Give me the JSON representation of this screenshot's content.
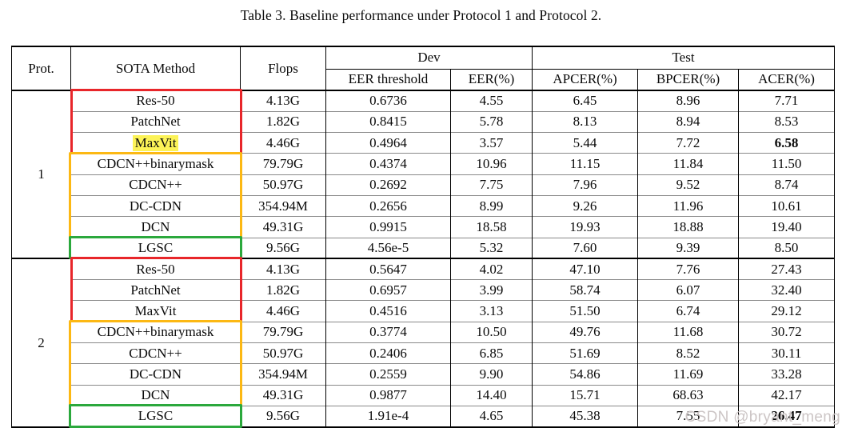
{
  "title": "Table 3. Baseline performance under Protocol 1 and Protocol 2.",
  "watermark": "CSDN @bryant_meng",
  "colors": {
    "red_box": "#e8262a",
    "orange_box": "#fcb813",
    "green_box": "#2ba83c",
    "highlight": "#fcf357",
    "row_line": "#8a8a8a"
  },
  "table": {
    "headers": {
      "prot": "Prot.",
      "method": "SOTA Method",
      "flops": "Flops",
      "dev": "Dev",
      "test": "Test",
      "sub": [
        "EER threshold",
        "EER(%)",
        "APCER(%)",
        "BPCER(%)",
        "ACER(%)"
      ]
    },
    "protocols": [
      {
        "label": "1",
        "rows": [
          {
            "method": "Res-50",
            "flops": "4.13G",
            "eer_threshold": "0.6736",
            "eer": "4.55",
            "apcer": "6.45",
            "bpcer": "8.96",
            "acer": "7.71",
            "group": "red",
            "highlight": false,
            "acer_bold": false
          },
          {
            "method": "PatchNet",
            "flops": "1.82G",
            "eer_threshold": "0.8415",
            "eer": "5.78",
            "apcer": "8.13",
            "bpcer": "8.94",
            "acer": "8.53",
            "group": "red",
            "highlight": false,
            "acer_bold": false
          },
          {
            "method": "MaxVit",
            "flops": "4.46G",
            "eer_threshold": "0.4964",
            "eer": "3.57",
            "apcer": "5.44",
            "bpcer": "7.72",
            "acer": "6.58",
            "group": "red",
            "highlight": true,
            "acer_bold": true
          },
          {
            "method": "CDCN++binarymask",
            "flops": "79.79G",
            "eer_threshold": "0.4374",
            "eer": "10.96",
            "apcer": "11.15",
            "bpcer": "11.84",
            "acer": "11.50",
            "group": "orange",
            "highlight": false,
            "acer_bold": false
          },
          {
            "method": "CDCN++",
            "flops": "50.97G",
            "eer_threshold": "0.2692",
            "eer": "7.75",
            "apcer": "7.96",
            "bpcer": "9.52",
            "acer": "8.74",
            "group": "orange",
            "highlight": false,
            "acer_bold": false
          },
          {
            "method": "DC-CDN",
            "flops": "354.94M",
            "eer_threshold": "0.2656",
            "eer": "8.99",
            "apcer": "9.26",
            "bpcer": "11.96",
            "acer": "10.61",
            "group": "orange",
            "highlight": false,
            "acer_bold": false
          },
          {
            "method": "DCN",
            "flops": "49.31G",
            "eer_threshold": "0.9915",
            "eer": "18.58",
            "apcer": "19.93",
            "bpcer": "18.88",
            "acer": "19.40",
            "group": "orange",
            "highlight": false,
            "acer_bold": false
          },
          {
            "method": "LGSC",
            "flops": "9.56G",
            "eer_threshold": "4.56e-5",
            "eer": "5.32",
            "apcer": "7.60",
            "bpcer": "9.39",
            "acer": "8.50",
            "group": "green",
            "highlight": false,
            "acer_bold": false
          }
        ]
      },
      {
        "label": "2",
        "rows": [
          {
            "method": "Res-50",
            "flops": "4.13G",
            "eer_threshold": "0.5647",
            "eer": "4.02",
            "apcer": "47.10",
            "bpcer": "7.76",
            "acer": "27.43",
            "group": "red",
            "highlight": false,
            "acer_bold": false
          },
          {
            "method": "PatchNet",
            "flops": "1.82G",
            "eer_threshold": "0.6957",
            "eer": "3.99",
            "apcer": "58.74",
            "bpcer": "6.07",
            "acer": "32.40",
            "group": "red",
            "highlight": false,
            "acer_bold": false
          },
          {
            "method": "MaxVit",
            "flops": "4.46G",
            "eer_threshold": "0.4516",
            "eer": "3.13",
            "apcer": "51.50",
            "bpcer": "6.74",
            "acer": "29.12",
            "group": "red",
            "highlight": false,
            "acer_bold": false
          },
          {
            "method": "CDCN++binarymask",
            "flops": "79.79G",
            "eer_threshold": "0.3774",
            "eer": "10.50",
            "apcer": "49.76",
            "bpcer": "11.68",
            "acer": "30.72",
            "group": "orange",
            "highlight": false,
            "acer_bold": false
          },
          {
            "method": "CDCN++",
            "flops": "50.97G",
            "eer_threshold": "0.2406",
            "eer": "6.85",
            "apcer": "51.69",
            "bpcer": "8.52",
            "acer": "30.11",
            "group": "orange",
            "highlight": false,
            "acer_bold": false
          },
          {
            "method": "DC-CDN",
            "flops": "354.94M",
            "eer_threshold": "0.2559",
            "eer": "9.90",
            "apcer": "54.86",
            "bpcer": "11.69",
            "acer": "33.28",
            "group": "orange",
            "highlight": false,
            "acer_bold": false
          },
          {
            "method": "DCN",
            "flops": "49.31G",
            "eer_threshold": "0.9877",
            "eer": "14.40",
            "apcer": "15.71",
            "bpcer": "68.63",
            "acer": "42.17",
            "group": "orange",
            "highlight": false,
            "acer_bold": false
          },
          {
            "method": "LGSC",
            "flops": "9.56G",
            "eer_threshold": "1.91e-4",
            "eer": "4.65",
            "apcer": "45.38",
            "bpcer": "7.55",
            "acer": "26.47",
            "group": "green",
            "highlight": false,
            "acer_bold": true
          }
        ]
      }
    ]
  }
}
